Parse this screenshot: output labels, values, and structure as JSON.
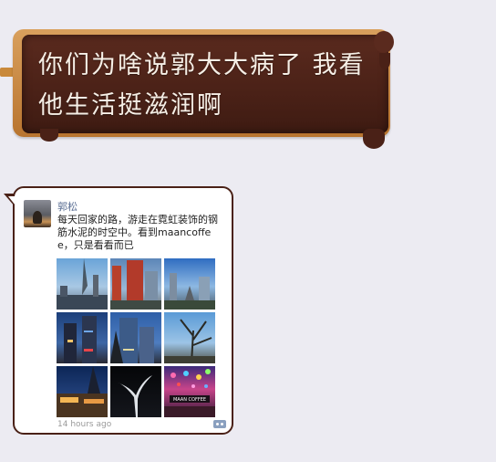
{
  "brown_bubble": {
    "text": "你们为啥说郭大大病了 我看他生活挺滋润啊"
  },
  "moments_post": {
    "author": "郭松",
    "text": "每天回家的路，游走在霓虹装饰的钢筋水泥的时空中。看到maancoffee，只是看看而已",
    "photos": [
      {
        "icon": "city-canal-photo"
      },
      {
        "icon": "red-tower-photo"
      },
      {
        "icon": "skyscraper-walkway-photo"
      },
      {
        "icon": "dusk-towers-photo"
      },
      {
        "icon": "glass-tower-photo"
      },
      {
        "icon": "tree-silhouette-photo"
      },
      {
        "icon": "night-street-photo"
      },
      {
        "icon": "white-sculpture-photo"
      },
      {
        "icon": "maancoffee-storefront-photo"
      }
    ],
    "photo_text": "MAAN COFFEE",
    "time": "14 hours ago",
    "comment_icon": "comment-icon"
  },
  "colors": {
    "background": "#ecebf2",
    "chocolate": "#4a2117",
    "author_link": "#5a6e93"
  }
}
